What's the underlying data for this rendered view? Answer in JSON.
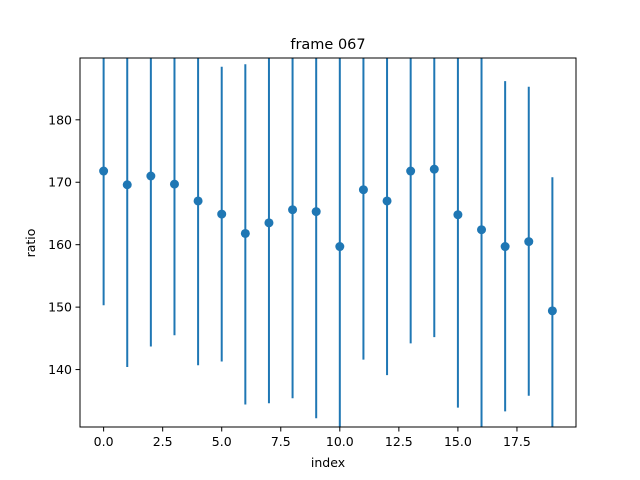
{
  "chart_data": {
    "type": "scatter",
    "title": "frame 067",
    "xlabel": "index",
    "ylabel": "ratio",
    "xlim": [
      -1.0,
      20.0
    ],
    "ylim": [
      130.8,
      189.9
    ],
    "x_ticks": [
      0.0,
      2.5,
      5.0,
      7.5,
      10.0,
      12.5,
      15.0,
      17.5
    ],
    "x_tick_labels": [
      "0.0",
      "2.5",
      "5.0",
      "7.5",
      "10.0",
      "12.5",
      "15.0",
      "17.5"
    ],
    "y_ticks": [
      140,
      150,
      160,
      170,
      180
    ],
    "y_tick_labels": [
      "140",
      "150",
      "160",
      "170",
      "180"
    ],
    "grid": false,
    "marker_color": "#1f77b4",
    "series": [
      {
        "x": [
          0,
          1,
          2,
          3,
          4,
          5,
          6,
          7,
          8,
          9,
          10,
          11,
          12,
          13,
          14,
          15,
          16,
          17,
          18,
          19
        ],
        "y": [
          171.8,
          169.6,
          171.0,
          169.7,
          167.0,
          164.9,
          161.8,
          163.5,
          165.6,
          165.3,
          159.7,
          168.8,
          167.0,
          171.8,
          172.1,
          164.8,
          162.4,
          159.7,
          160.5,
          149.4
        ],
        "yerr_lower": [
          150.3,
          140.4,
          143.7,
          145.5,
          140.7,
          141.3,
          134.4,
          134.6,
          135.4,
          132.2,
          130.8,
          141.6,
          139.1,
          144.2,
          145.2,
          133.9,
          130.8,
          133.3,
          135.8,
          130.8
        ],
        "yerr_upper": [
          189.9,
          189.9,
          189.9,
          189.9,
          189.9,
          188.5,
          188.9,
          189.9,
          189.9,
          189.9,
          189.9,
          189.9,
          189.9,
          189.9,
          189.9,
          189.9,
          189.9,
          186.2,
          185.3,
          170.8
        ]
      }
    ]
  }
}
